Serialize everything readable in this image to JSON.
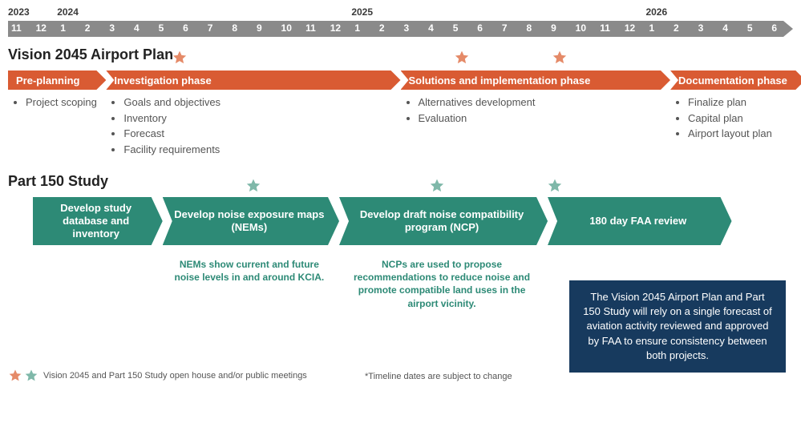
{
  "colors": {
    "axis_bg": "#8a8a8a",
    "orange": "#d95b33",
    "orange_star": "#e58a68",
    "teal": "#2d8a76",
    "teal_star": "#7fb8a9",
    "navy": "#173a5e",
    "text_dark": "#222222",
    "text_body": "#555555",
    "caption_teal": "#2d8a76"
  },
  "timeline": {
    "start": "2023-11",
    "end": "2026-06",
    "total_months": 32,
    "years": [
      {
        "label": "2023",
        "month_index": 0
      },
      {
        "label": "2024",
        "month_index": 2
      },
      {
        "label": "2025",
        "month_index": 14
      },
      {
        "label": "2026",
        "month_index": 26
      }
    ],
    "months": [
      "11",
      "12",
      "1",
      "2",
      "3",
      "4",
      "5",
      "6",
      "7",
      "8",
      "9",
      "10",
      "11",
      "12",
      "1",
      "2",
      "3",
      "4",
      "5",
      "6",
      "7",
      "8",
      "9",
      "10",
      "11",
      "12",
      "1",
      "2",
      "3",
      "4",
      "5",
      "6"
    ]
  },
  "vision": {
    "title": "Vision 2045 Airport Plan",
    "phases": [
      {
        "label": "Pre-planning",
        "start": 0,
        "end": 4,
        "first": true,
        "bullets": [
          "Project scoping"
        ]
      },
      {
        "label": "Investigation phase",
        "start": 4,
        "end": 16,
        "bullets": [
          "Goals and objectives",
          "Inventory",
          "Forecast",
          "Facility requirements"
        ]
      },
      {
        "label": "Solutions and implementation phase",
        "start": 16,
        "end": 27,
        "bullets": [
          "Alternatives development",
          "Evaluation"
        ]
      },
      {
        "label": "Documentation phase",
        "start": 27,
        "end": 32.5,
        "bullets": [
          "Finalize plan",
          "Capital plan",
          "Airport layout plan"
        ]
      }
    ],
    "stars": [
      7,
      18.5,
      22.5
    ]
  },
  "part150": {
    "title": "Part 150 Study",
    "phases": [
      {
        "label": "Develop study database and inventory",
        "start": 1,
        "end": 6.3,
        "first": true
      },
      {
        "label": "Develop noise exposure maps (NEMs)",
        "start": 6.3,
        "end": 13.5,
        "caption": "NEMs show current and future noise levels in and around KCIA."
      },
      {
        "label": "Develop draft noise compatibility program (NCP)",
        "start": 13.5,
        "end": 22,
        "caption": "NCPs are used to propose recommendations to reduce noise and promote compatible land uses in the airport vicinity."
      },
      {
        "label": "180 day FAA review",
        "start": 22,
        "end": 29.5
      }
    ],
    "stars": [
      10,
      17.5,
      22.3
    ]
  },
  "info_box": {
    "text": "The Vision 2045 Airport Plan and Part 150 Study will rely on a single forecast of aviation activity reviewed and approved by FAA to ensure consistency between both projects."
  },
  "footer": {
    "legend": "Vision 2045 and Part 150 Study open house and/or public meetings",
    "disclaimer": "*Timeline dates are subject to change"
  }
}
